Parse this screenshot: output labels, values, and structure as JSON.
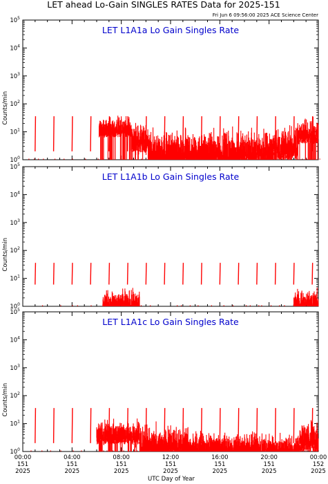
{
  "page": {
    "title": "LET ahead Lo-Gain SINGLES RATES Data for 2025-151",
    "timestamp": "Fri Jun  6 09:56:00 2025 ACE Science Center",
    "xlabel": "UTC Day of Year"
  },
  "colors": {
    "data": "#ff0000",
    "panel_title": "#0000cc",
    "axes": "#000000"
  },
  "chart_data": [
    {
      "type": "line",
      "title": "LET L1A1a Lo Gain Singles Rate",
      "ylabel": "Counts/min",
      "yscale": "log",
      "ylim": [
        1,
        100000
      ],
      "xlim": [
        0,
        24
      ],
      "y_ticks": [
        {
          "base": "10",
          "exp": "0"
        },
        {
          "base": "10",
          "exp": "1"
        },
        {
          "base": "10",
          "exp": "2"
        },
        {
          "base": "10",
          "exp": "3"
        },
        {
          "base": "10",
          "exp": "4"
        },
        {
          "base": "10",
          "exp": "5"
        }
      ],
      "x_tick_labels": [],
      "spikes": {
        "hours": [
          1.0,
          2.5,
          4.0,
          5.5,
          7.0,
          8.5,
          10.0,
          11.5,
          13.0,
          14.5,
          16.0,
          17.5,
          19.0,
          20.5,
          22.0,
          23.5
        ],
        "peak": 36,
        "base": 2
      },
      "regions": [
        {
          "start": 6.2,
          "end": 8.8,
          "level": 15,
          "spread": 0.25
        },
        {
          "start": 8.8,
          "end": 10.3,
          "level": 6,
          "spread": 0.35
        },
        {
          "start": 10.3,
          "end": 20.3,
          "level": 2.5,
          "spread": 0.45
        },
        {
          "start": 20.3,
          "end": 22.3,
          "level": 4,
          "spread": 0.4
        },
        {
          "start": 22.3,
          "end": 24.0,
          "level": 10,
          "spread": 0.3
        }
      ]
    },
    {
      "type": "line",
      "title": "LET L1A1b Lo Gain Singles Rate",
      "ylabel": "Counts/min",
      "yscale": "log",
      "ylim": [
        1,
        100000
      ],
      "xlim": [
        0,
        24
      ],
      "y_ticks": [
        {
          "base": "10",
          "exp": "0"
        },
        {
          "base": "10",
          "exp": "1"
        },
        {
          "base": "10",
          "exp": "2"
        },
        {
          "base": "10",
          "exp": "3"
        },
        {
          "base": "10",
          "exp": "4"
        },
        {
          "base": "10",
          "exp": "5"
        }
      ],
      "x_tick_labels": [],
      "spikes": {
        "hours": [
          1.0,
          2.5,
          4.0,
          5.5,
          7.0,
          8.5,
          10.0,
          11.5,
          13.0,
          14.5,
          16.0,
          17.5,
          19.0,
          20.5,
          22.0,
          23.5
        ],
        "peak": 36,
        "base": 6
      },
      "regions": [
        {
          "start": 6.5,
          "end": 9.5,
          "level": 1.6,
          "spread": 0.25
        },
        {
          "start": 22.0,
          "end": 24.0,
          "level": 1.6,
          "spread": 0.3
        }
      ]
    },
    {
      "type": "line",
      "title": "LET L1A1c Lo Gain Singles Rate",
      "ylabel": "Counts/min",
      "yscale": "log",
      "ylim": [
        1,
        100000
      ],
      "xlim": [
        0,
        24
      ],
      "y_ticks": [
        {
          "base": "10",
          "exp": "0"
        },
        {
          "base": "10",
          "exp": "1"
        },
        {
          "base": "10",
          "exp": "2"
        },
        {
          "base": "10",
          "exp": "3"
        },
        {
          "base": "10",
          "exp": "4"
        },
        {
          "base": "10",
          "exp": "5"
        }
      ],
      "x_tick_labels": [
        {
          "time": "00:00",
          "doy": "151",
          "year": "2025"
        },
        {
          "time": "04:00",
          "doy": "151",
          "year": "2025"
        },
        {
          "time": "08:00",
          "doy": "151",
          "year": "2025"
        },
        {
          "time": "12:00",
          "doy": "151",
          "year": "2025"
        },
        {
          "time": "16:00",
          "doy": "151",
          "year": "2025"
        },
        {
          "time": "20:00",
          "doy": "151",
          "year": "2025"
        },
        {
          "time": "00:00",
          "doy": "152",
          "year": "2025"
        }
      ],
      "spikes": {
        "hours": [
          1.0,
          2.5,
          4.0,
          5.5,
          7.0,
          8.5,
          10.0,
          11.5,
          13.0,
          14.5,
          16.0,
          17.5,
          19.0,
          20.5,
          22.0,
          23.5
        ],
        "peak": 36,
        "base": 2
      },
      "regions": [
        {
          "start": 6.0,
          "end": 9.5,
          "level": 5,
          "spread": 0.3
        },
        {
          "start": 9.5,
          "end": 13.5,
          "level": 2.2,
          "spread": 0.4
        },
        {
          "start": 13.5,
          "end": 22.5,
          "level": 1.6,
          "spread": 0.3
        },
        {
          "start": 22.5,
          "end": 24.0,
          "level": 4,
          "spread": 0.4
        }
      ]
    }
  ]
}
